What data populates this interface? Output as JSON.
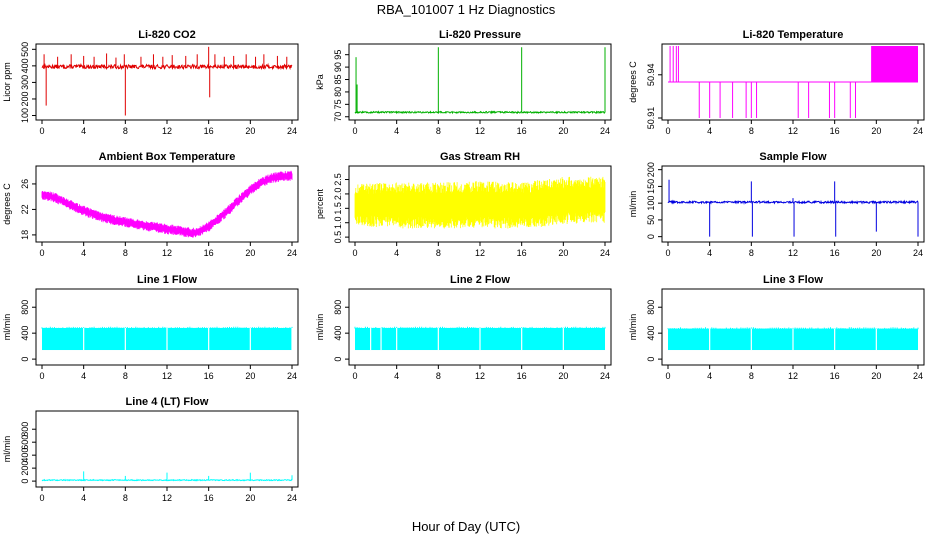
{
  "figure": {
    "title": "RBA_101007  1 Hz Diagnostics",
    "xlabel": "Hour of Day (UTC)"
  },
  "chart_data": [
    {
      "type": "line",
      "title": "Li-820 CO2",
      "ylabel": "Licor ppm",
      "color": "#e00000",
      "xticks": [
        "0",
        "4",
        "8",
        "12",
        "16",
        "20",
        "24"
      ],
      "yticks": [
        "100",
        "200",
        "300",
        "400",
        "500"
      ],
      "xlim": [
        0,
        24
      ],
      "ylim": [
        85,
        520
      ],
      "baseline": 395,
      "noise": 12,
      "spikes": [
        [
          0.2,
          470
        ],
        [
          0.4,
          160
        ],
        [
          1.5,
          455
        ],
        [
          2.8,
          470
        ],
        [
          4.0,
          460
        ],
        [
          5.0,
          455
        ],
        [
          6.2,
          475
        ],
        [
          7.1,
          450
        ],
        [
          7.9,
          470
        ],
        [
          8.0,
          100
        ],
        [
          9.5,
          455
        ],
        [
          10.7,
          470
        ],
        [
          11.6,
          455
        ],
        [
          12.5,
          465
        ],
        [
          13.8,
          460
        ],
        [
          14.9,
          470
        ],
        [
          16.0,
          515
        ],
        [
          16.1,
          210
        ],
        [
          16.6,
          470
        ],
        [
          17.5,
          455
        ],
        [
          18.4,
          460
        ],
        [
          19.6,
          470
        ],
        [
          20.5,
          455
        ],
        [
          21.3,
          470
        ],
        [
          22.6,
          460
        ],
        [
          23.5,
          455
        ]
      ]
    },
    {
      "type": "line",
      "title": "Li-820 Pressure",
      "ylabel": "kPa",
      "color": "#00b000",
      "xticks": [
        "0",
        "4",
        "8",
        "12",
        "16",
        "20",
        "24"
      ],
      "yticks": [
        "70",
        "75",
        "80",
        "85",
        "90",
        "95"
      ],
      "xlim": [
        0,
        24
      ],
      "ylim": [
        69.5,
        98.5
      ],
      "baseline": 71.8,
      "noise": 0.3,
      "spikes": [
        [
          0.1,
          94
        ],
        [
          0.2,
          83
        ],
        [
          8.0,
          98
        ],
        [
          16.0,
          98
        ],
        [
          24.0,
          98
        ]
      ]
    },
    {
      "type": "line",
      "title": "Li-820 Temperature",
      "ylabel": "degrees C",
      "color": "#ff00ff",
      "xticks": [
        "0",
        "4",
        "8",
        "12",
        "16",
        "20",
        "24"
      ],
      "yticks": [
        "50.91",
        "50.94"
      ],
      "xlim": [
        0,
        24
      ],
      "ylim": [
        50.91,
        50.96
      ],
      "baseline": 50.935,
      "high": 50.96,
      "low": 50.91,
      "low_spikes": [
        3.0,
        4.0,
        5.0,
        6.2,
        7.5,
        8.0,
        8.5,
        12.5,
        13.5,
        15.5,
        16.0,
        17.5,
        18.0
      ],
      "high_spikes": [
        0.2,
        0.5,
        0.8,
        1.0
      ],
      "high_band": [
        19.5,
        24
      ]
    },
    {
      "type": "area",
      "title": "Ambient Box Temperature",
      "ylabel": "degrees C",
      "color": "#ff00ff",
      "xticks": [
        "0",
        "4",
        "8",
        "12",
        "16",
        "20",
        "24"
      ],
      "yticks": [
        "18",
        "22",
        "26"
      ],
      "xlim": [
        0,
        24
      ],
      "ylim": [
        17.2,
        28.5
      ],
      "x": [
        0,
        1,
        2,
        3,
        4,
        5,
        6,
        7,
        8,
        9,
        10,
        11,
        12,
        13,
        14,
        14.5,
        15,
        16,
        17,
        18,
        19,
        20,
        21,
        22,
        23,
        24
      ],
      "y": [
        24.3,
        24.0,
        23.3,
        22.5,
        21.8,
        21.2,
        20.7,
        20.3,
        20.0,
        19.7,
        19.4,
        19.2,
        18.9,
        18.7,
        18.4,
        18.3,
        18.5,
        19.3,
        20.6,
        22.0,
        23.6,
        25.0,
        26.2,
        26.9,
        27.2,
        27.3
      ],
      "band": 0.8
    },
    {
      "type": "area",
      "title": "Gas Stream RH",
      "ylabel": "percent",
      "color": "#ffff00",
      "xticks": [
        "0",
        "4",
        "8",
        "12",
        "16",
        "20",
        "24"
      ],
      "yticks": [
        "0.5",
        "1.0",
        "1.5",
        "2.0",
        "2.5"
      ],
      "xlim": [
        0,
        24
      ],
      "ylim": [
        0.4,
        2.9
      ],
      "x": [
        0,
        4,
        8,
        12,
        16,
        18,
        20,
        24
      ],
      "lower": [
        0.9,
        0.8,
        0.8,
        0.8,
        0.8,
        0.85,
        0.95,
        1.0
      ],
      "upper": [
        2.35,
        2.4,
        2.4,
        2.45,
        2.4,
        2.5,
        2.6,
        2.6
      ]
    },
    {
      "type": "line",
      "title": "Sample Flow",
      "ylabel": "ml/min",
      "color": "#0000e0",
      "xticks": [
        "0",
        "4",
        "8",
        "12",
        "16",
        "20",
        "24"
      ],
      "yticks": [
        "0",
        "50",
        "100",
        "150",
        "200"
      ],
      "xlim": [
        0,
        24
      ],
      "ylim": [
        -10,
        205
      ],
      "baseline": 103,
      "noise": 3,
      "spikes": [
        [
          0.1,
          170
        ],
        [
          4.0,
          0
        ],
        [
          8.0,
          165
        ],
        [
          8.1,
          0
        ],
        [
          12.0,
          115
        ],
        [
          12.1,
          0
        ],
        [
          16.0,
          165
        ],
        [
          16.1,
          0
        ],
        [
          20.0,
          15
        ],
        [
          24.0,
          0
        ]
      ]
    },
    {
      "type": "area",
      "title": "Line 1 Flow",
      "ylabel": "ml/min",
      "color": "#00ffff",
      "xticks": [
        "0",
        "4",
        "8",
        "12",
        "16",
        "20",
        "24"
      ],
      "yticks": [
        "0",
        "400",
        "800"
      ],
      "xlim": [
        0,
        24
      ],
      "ylim": [
        -60,
        1050
      ],
      "lower": 140,
      "upper": 480,
      "gaps": [
        4.0,
        8.0,
        12.0,
        16.0,
        20.0,
        24.0
      ]
    },
    {
      "type": "area",
      "title": "Line 2 Flow",
      "ylabel": "ml/min",
      "color": "#00ffff",
      "xticks": [
        "0",
        "4",
        "8",
        "12",
        "16",
        "20",
        "24"
      ],
      "yticks": [
        "0",
        "400",
        "800"
      ],
      "xlim": [
        0,
        24
      ],
      "ylim": [
        -60,
        1050
      ],
      "lower": 140,
      "upper": 480,
      "gaps": [
        1.5,
        2.5,
        4.0,
        8.0,
        12.0,
        16.0,
        20.0
      ]
    },
    {
      "type": "area",
      "title": "Line 3 Flow",
      "ylabel": "ml/min",
      "color": "#00ffff",
      "xticks": [
        "0",
        "4",
        "8",
        "12",
        "16",
        "20",
        "24"
      ],
      "yticks": [
        "0",
        "400",
        "800"
      ],
      "xlim": [
        0,
        24
      ],
      "ylim": [
        -60,
        1050
      ],
      "lower": 140,
      "upper": 470,
      "gaps": [
        4.0,
        8.0,
        12.0,
        16.0,
        20.0
      ]
    },
    {
      "type": "line",
      "title": "Line 4 (LT) Flow",
      "ylabel": "ml/min",
      "color": "#00ffff",
      "xticks": [
        "0",
        "4",
        "8",
        "12",
        "16",
        "20",
        "24"
      ],
      "yticks": [
        "0",
        "200",
        "400",
        "600",
        "800"
      ],
      "xlim": [
        0,
        24
      ],
      "ylim": [
        -60,
        1050
      ],
      "baseline": 15,
      "noise": 8,
      "spikes": [
        [
          4.0,
          150
        ],
        [
          8.0,
          80
        ],
        [
          12.0,
          130
        ],
        [
          16.0,
          80
        ],
        [
          20.0,
          130
        ],
        [
          24.0,
          90
        ]
      ]
    }
  ]
}
